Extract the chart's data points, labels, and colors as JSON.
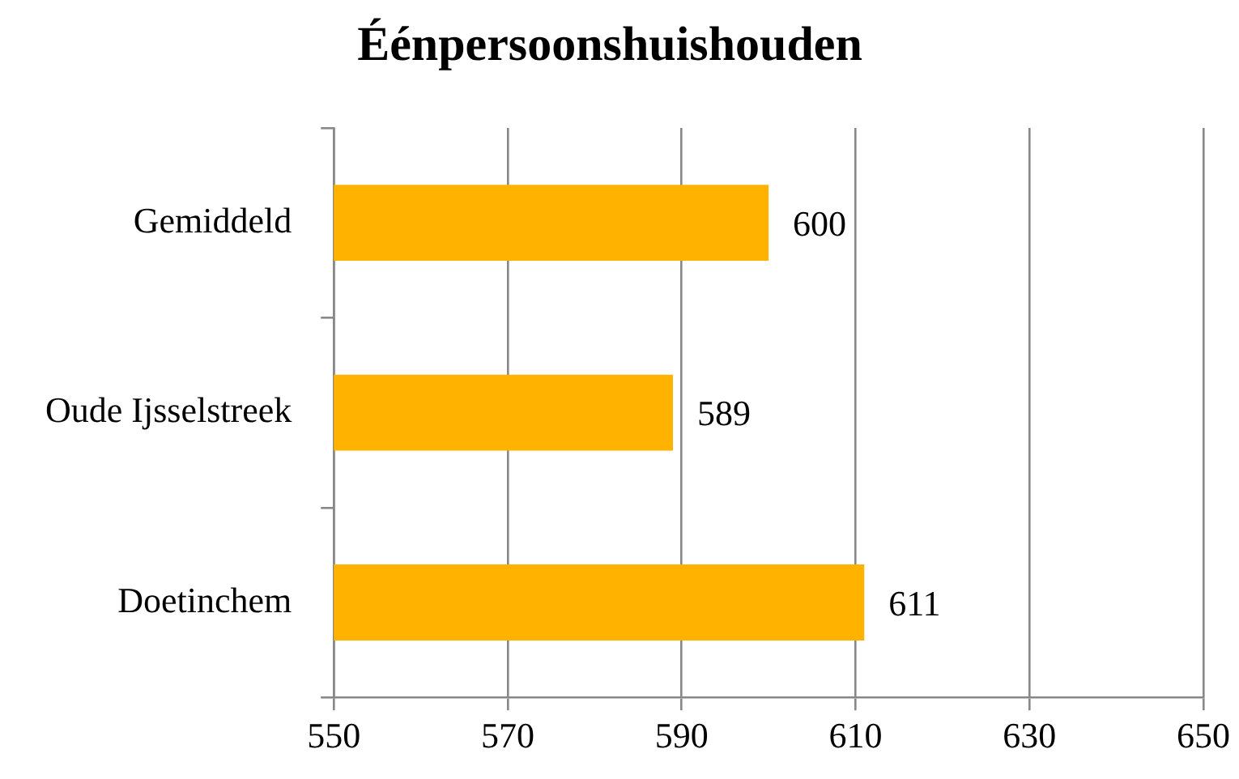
{
  "chart_data": {
    "type": "bar",
    "orientation": "horizontal",
    "title": "Éénpersoonshuishouden",
    "categories": [
      "Gemiddeld",
      "Oude Ijsselstreek",
      "Doetinchem"
    ],
    "values": [
      600,
      589,
      611
    ],
    "color": "#ffb300",
    "xlim": [
      550,
      650
    ],
    "xticks": [
      550,
      570,
      590,
      610,
      630,
      650
    ],
    "grid": "x",
    "data_labels": true
  }
}
